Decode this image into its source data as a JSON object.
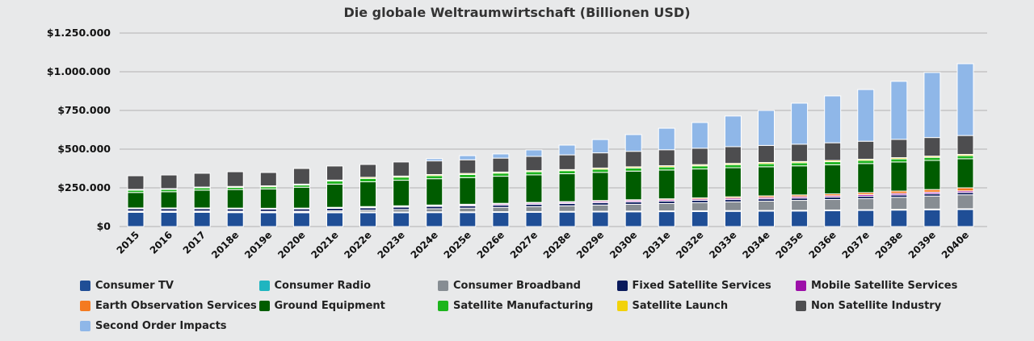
{
  "chart_data": {
    "type": "bar",
    "stacked": true,
    "title": "Die globale Weltraumwirtschaft (Billionen USD)",
    "xlabel": "",
    "ylabel": "",
    "ylim": [
      0,
      1250000
    ],
    "yticks": [
      0,
      250000,
      500000,
      750000,
      1000000,
      1250000
    ],
    "ytick_labels": [
      "$0",
      "$250.000",
      "$500.000",
      "$750.000",
      "$1.000.000",
      "$1.250.000"
    ],
    "grid": true,
    "legend_position": "bottom",
    "categories": [
      "2015",
      "2016",
      "2017",
      "2018e",
      "2019e",
      "2020e",
      "2021e",
      "2022e",
      "2023e",
      "2024e",
      "2025e",
      "2026e",
      "2027e",
      "2028e",
      "2029e",
      "2030e",
      "2031e",
      "2032e",
      "2033e",
      "2034e",
      "2035e",
      "2036e",
      "2037e",
      "2038e",
      "2039e",
      "2040e"
    ],
    "series": [
      {
        "name": "Consumer TV",
        "color": "#1f4e96",
        "values": [
          92000,
          92000,
          92000,
          90000,
          89000,
          89000,
          89000,
          89000,
          89000,
          90000,
          90000,
          91000,
          92000,
          93000,
          94000,
          95000,
          96000,
          97000,
          98000,
          99000,
          100000,
          102000,
          104000,
          106000,
          108000,
          110000
        ]
      },
      {
        "name": "Consumer Radio",
        "color": "#1fb5c0",
        "values": [
          5000,
          5000,
          5000,
          5000,
          5000,
          5000,
          5000,
          5000,
          5000,
          5000,
          5000,
          5000,
          5000,
          5000,
          5000,
          5000,
          5000,
          5000,
          5000,
          5000,
          5000,
          5000,
          5000,
          5000,
          5000,
          5000
        ]
      },
      {
        "name": "Consumer Broadband",
        "color": "#878d93",
        "values": [
          3000,
          3000,
          3000,
          4000,
          4000,
          5000,
          8000,
          12000,
          16000,
          20000,
          24000,
          28000,
          32000,
          36000,
          40000,
          44000,
          48000,
          52000,
          56000,
          60000,
          64000,
          68000,
          72000,
          78000,
          84000,
          90000
        ]
      },
      {
        "name": "Fixed Satellite Services",
        "color": "#0a1a5c",
        "values": [
          15000,
          15000,
          15000,
          15000,
          15000,
          15000,
          15000,
          15000,
          15000,
          15000,
          15000,
          15000,
          15000,
          15000,
          15000,
          15000,
          15000,
          15000,
          15000,
          15000,
          15000,
          15000,
          15000,
          15000,
          15000,
          15000
        ]
      },
      {
        "name": "Mobile Satellite Services",
        "color": "#9c0fa8",
        "values": [
          3000,
          3000,
          3000,
          3000,
          3000,
          3000,
          4000,
          5000,
          6000,
          6000,
          6000,
          7000,
          7000,
          7000,
          8000,
          8000,
          8000,
          8000,
          9000,
          9000,
          9000,
          9000,
          10000,
          10000,
          10000,
          10000
        ]
      },
      {
        "name": "Earth Observation Services",
        "color": "#f47a20",
        "values": [
          2000,
          2000,
          2000,
          2000,
          2000,
          2000,
          3000,
          3000,
          3000,
          3000,
          4000,
          4000,
          5000,
          5000,
          6000,
          6000,
          7000,
          8000,
          9000,
          10000,
          11000,
          12000,
          13000,
          15000,
          17000,
          20000
        ]
      },
      {
        "name": "Ground Equipment",
        "color": "#005c00",
        "values": [
          100000,
          105000,
          115000,
          120000,
          125000,
          135000,
          150000,
          160000,
          165000,
          170000,
          172000,
          175000,
          178000,
          180000,
          182000,
          185000,
          186000,
          187000,
          188000,
          188000,
          188000,
          188000,
          188000,
          188000,
          188000,
          188000
        ]
      },
      {
        "name": "Satellite Manufacturing",
        "color": "#1db51d",
        "values": [
          15000,
          15000,
          15000,
          14000,
          14000,
          14000,
          20000,
          22000,
          20000,
          20000,
          20000,
          20000,
          20000,
          20000,
          20000,
          20000,
          20000,
          20000,
          20000,
          20000,
          20000,
          20000,
          20000,
          20000,
          20000,
          20000
        ]
      },
      {
        "name": "Satellite Launch",
        "color": "#f2d20a",
        "values": [
          5000,
          5000,
          5000,
          6000,
          6000,
          6000,
          6000,
          7000,
          7000,
          7000,
          7000,
          7000,
          7000,
          7000,
          8000,
          8000,
          8000,
          8000,
          8000,
          8000,
          8000,
          8000,
          8000,
          8000,
          8000,
          8000
        ]
      },
      {
        "name": "Non Satellite Industry",
        "color": "#4d4d4f",
        "values": [
          88000,
          88000,
          89000,
          95000,
          86000,
          101000,
          91000,
          83000,
          91000,
          88000,
          88000,
          90000,
          92000,
          95000,
          98000,
          100000,
          103000,
          106000,
          108000,
          110000,
          112000,
          114000,
          116000,
          118000,
          120000,
          122000
        ]
      },
      {
        "name": "Second Order Impacts",
        "color": "#8fb7e8",
        "values": [
          0,
          0,
          0,
          0,
          0,
          0,
          0,
          0,
          0,
          14000,
          27000,
          27000,
          42000,
          63000,
          86000,
          108000,
          139000,
          166000,
          198000,
          226000,
          265000,
          303000,
          334000,
          375000,
          420000,
          464000
        ]
      }
    ]
  }
}
